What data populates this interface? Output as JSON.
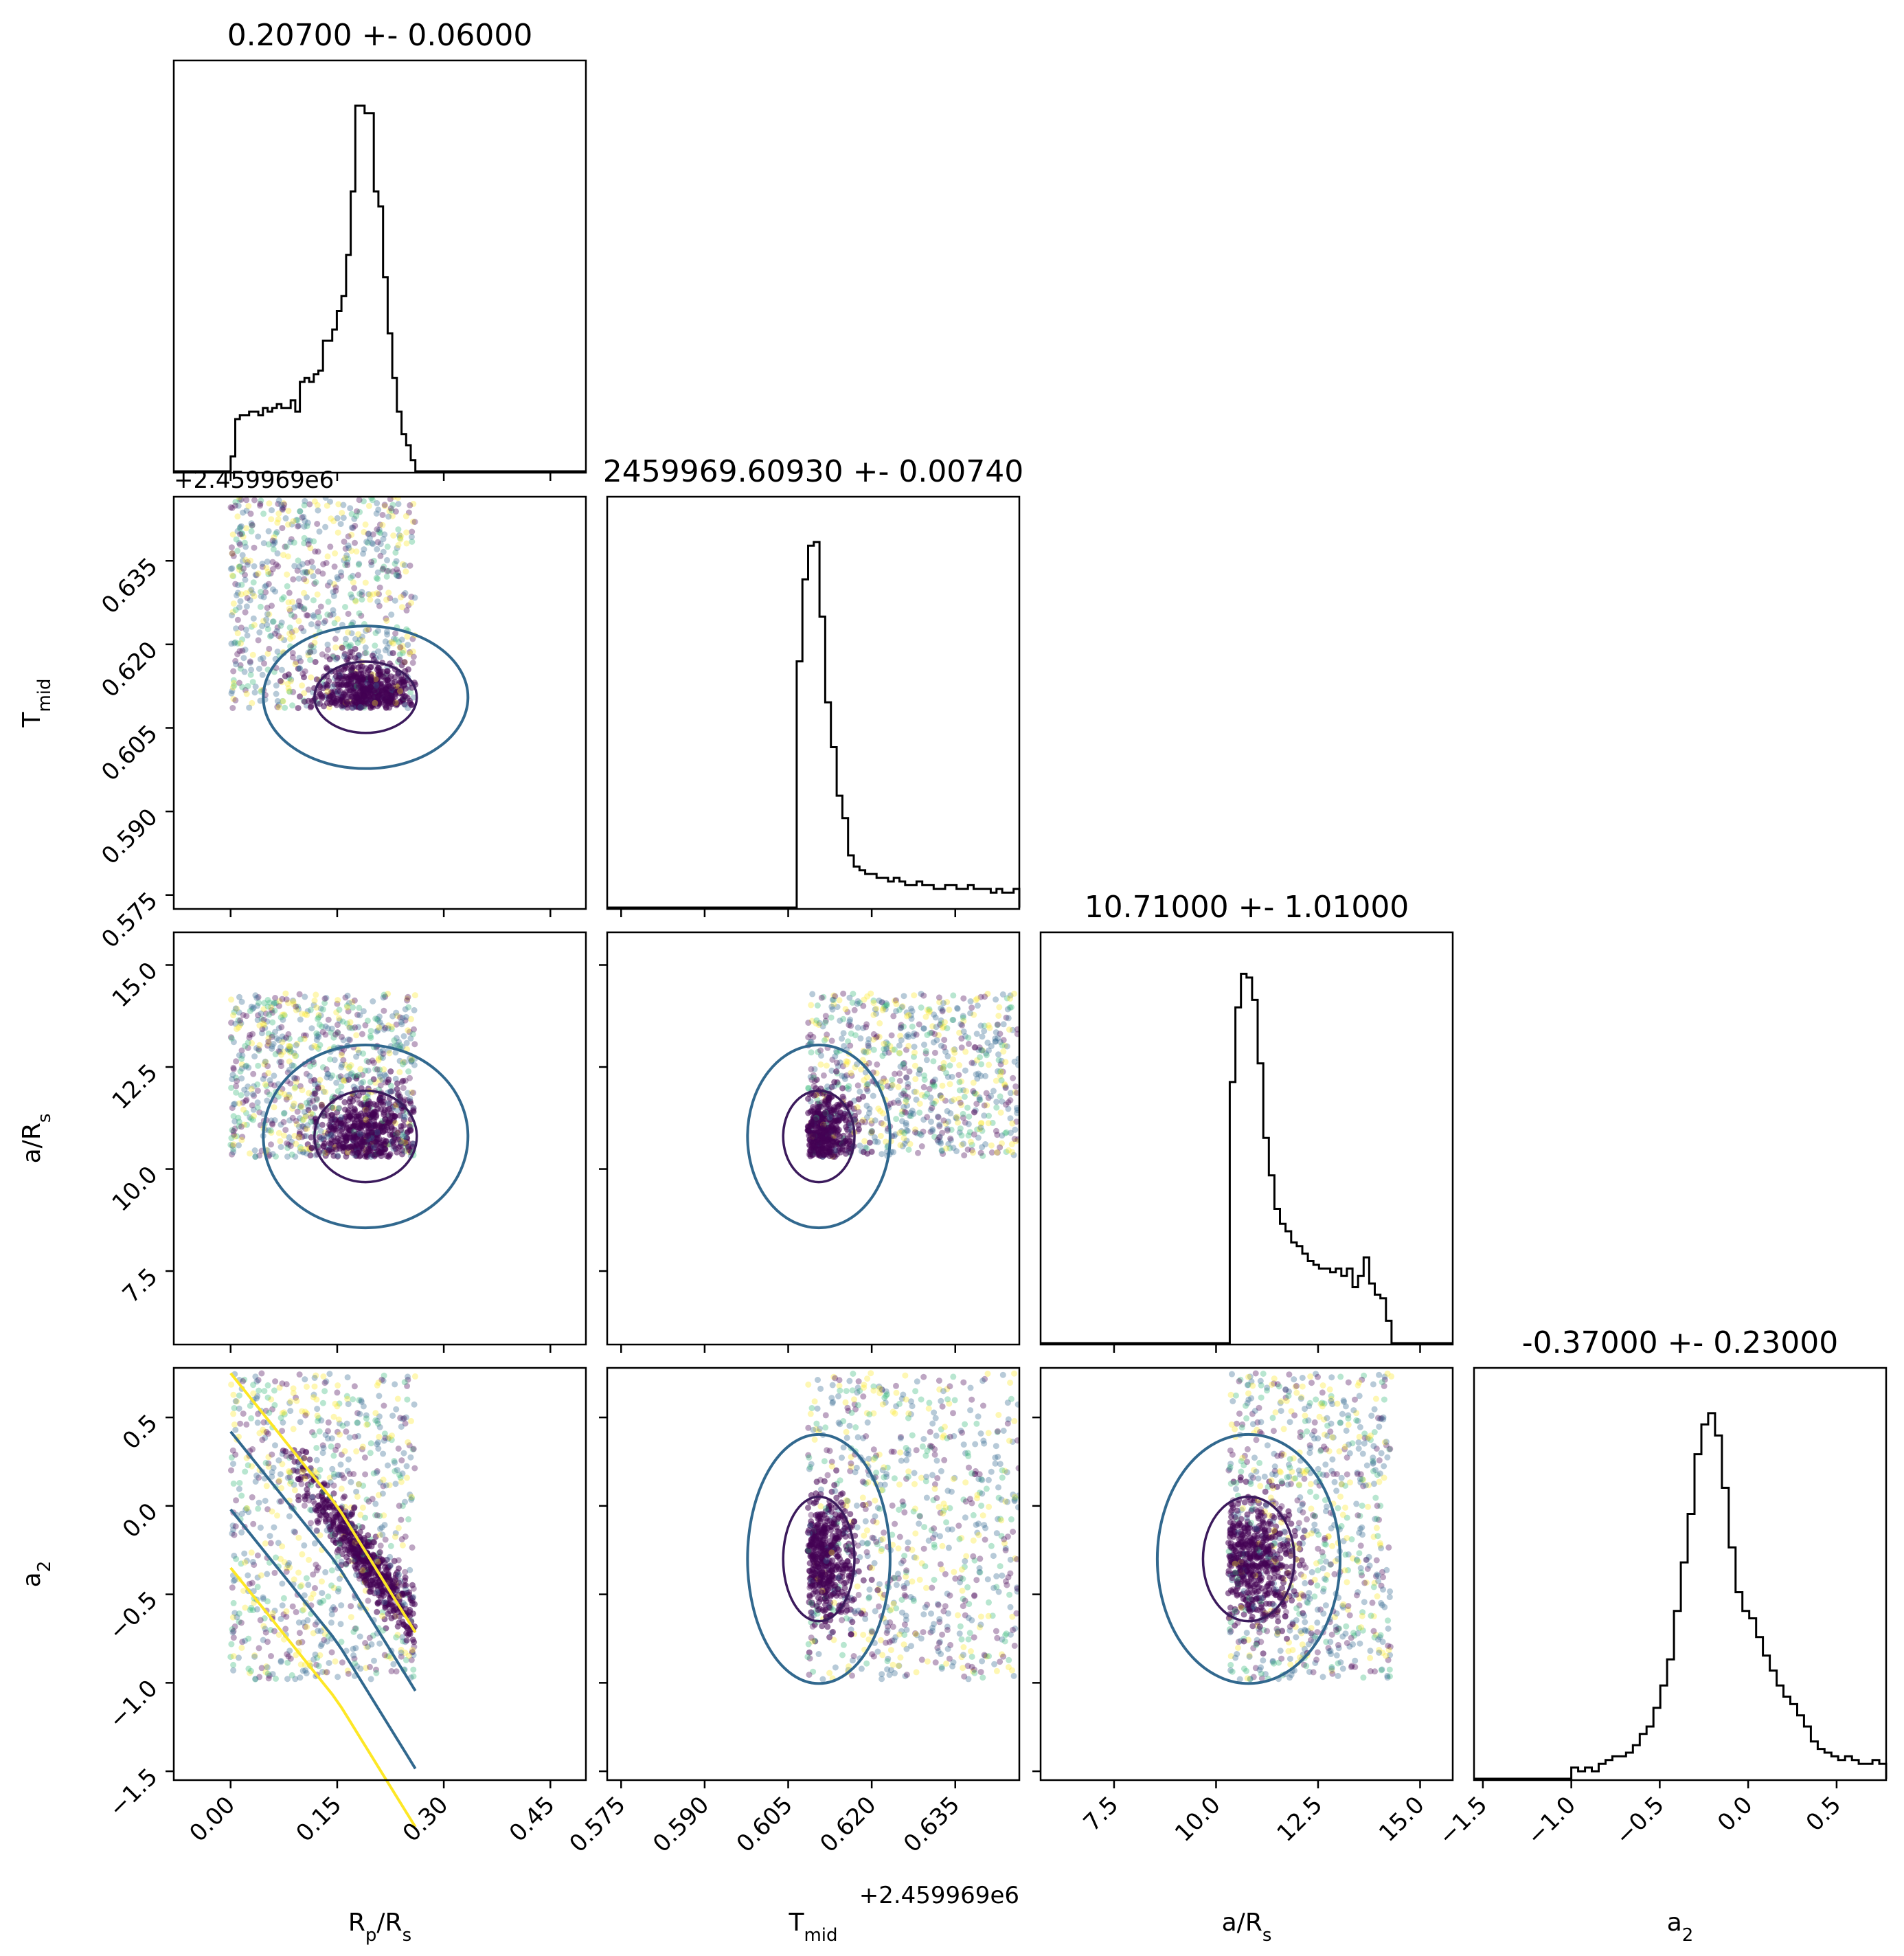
{
  "chart_data": {
    "type": "scatter",
    "subtype": "corner-plot",
    "parameters": [
      {
        "key": "rp",
        "label": "R_p/R_s",
        "label_main": "R",
        "label_sub": "p",
        "label_rest": "/R",
        "label_sub2": "s",
        "title": "0.20700 +- 0.06000",
        "range": [
          -0.08,
          0.5
        ],
        "ticks": [
          {
            "v": 0.0,
            "t": "0.00"
          },
          {
            "v": 0.15,
            "t": "0.15"
          },
          {
            "v": 0.3,
            "t": "0.30"
          },
          {
            "v": 0.45,
            "t": "0.45"
          }
        ]
      },
      {
        "key": "tmid",
        "label": "T_mid",
        "label_main": "T",
        "label_sub": "mid",
        "label_rest": "",
        "label_sub2": "",
        "title": "2459969.60930 +- 0.00740",
        "range": [
          0.5725,
          0.6465
        ],
        "offset_text": "+2.459969e6",
        "ticks": [
          {
            "v": 0.575,
            "t": "0.575"
          },
          {
            "v": 0.59,
            "t": "0.590"
          },
          {
            "v": 0.605,
            "t": "0.605"
          },
          {
            "v": 0.62,
            "t": "0.620"
          },
          {
            "v": 0.635,
            "t": "0.635"
          }
        ]
      },
      {
        "key": "ars",
        "label": "a/R_s",
        "label_main": "a/R",
        "label_sub": "s",
        "label_rest": "",
        "label_sub2": "",
        "title": "10.71000 +- 1.01000",
        "range": [
          5.7,
          15.8
        ],
        "ticks": [
          {
            "v": 7.5,
            "t": "7.5"
          },
          {
            "v": 10.0,
            "t": "10.0"
          },
          {
            "v": 12.5,
            "t": "12.5"
          },
          {
            "v": 15.0,
            "t": "15.0"
          }
        ]
      },
      {
        "key": "a2",
        "label": "a_2",
        "label_main": "a",
        "label_sub": "2",
        "label_rest": "",
        "label_sub2": "",
        "title": "-0.37000 +- 0.23000",
        "range": [
          -1.55,
          0.78
        ],
        "ticks": [
          {
            "v": -1.5,
            "t": "−1.5"
          },
          {
            "v": -1.0,
            "t": "−1.0"
          },
          {
            "v": -0.5,
            "t": "−0.5"
          },
          {
            "v": 0.0,
            "t": "0.0"
          },
          {
            "v": 0.5,
            "t": "0.5"
          }
        ]
      }
    ],
    "histograms": {
      "rp": {
        "edges_range": [
          0.0,
          0.26
        ],
        "ymax": 1.0,
        "counts": [
          0.04,
          0.14,
          0.15,
          0.15,
          0.16,
          0.16,
          0.15,
          0.17,
          0.16,
          0.17,
          0.18,
          0.17,
          0.17,
          0.19,
          0.16,
          0.24,
          0.25,
          0.24,
          0.26,
          0.27,
          0.35,
          0.35,
          0.38,
          0.43,
          0.47,
          0.58,
          0.75,
          0.98,
          0.98,
          0.96,
          0.96,
          0.75,
          0.71,
          0.52,
          0.37,
          0.25,
          0.16,
          0.1,
          0.07,
          0.03
        ]
      },
      "tmid": {
        "edges_range": [
          0.6055,
          0.6465
        ],
        "ymax": 1.0,
        "counts": [
          0.0,
          0.66,
          0.88,
          0.97,
          0.98,
          0.78,
          0.55,
          0.43,
          0.3,
          0.24,
          0.14,
          0.11,
          0.1,
          0.09,
          0.09,
          0.08,
          0.08,
          0.07,
          0.08,
          0.07,
          0.06,
          0.06,
          0.07,
          0.06,
          0.06,
          0.05,
          0.05,
          0.06,
          0.06,
          0.05,
          0.05,
          0.06,
          0.05,
          0.05,
          0.05,
          0.04,
          0.05,
          0.04,
          0.04,
          0.05
        ]
      },
      "ars": {
        "edges_range": [
          10.2,
          14.3
        ],
        "ymax": 1.0,
        "counts": [
          0.0,
          0.7,
          0.9,
          0.99,
          0.98,
          0.92,
          0.75,
          0.55,
          0.45,
          0.36,
          0.32,
          0.3,
          0.27,
          0.26,
          0.24,
          0.22,
          0.21,
          0.2,
          0.2,
          0.19,
          0.2,
          0.18,
          0.2,
          0.15,
          0.18,
          0.23,
          0.16,
          0.13,
          0.12,
          0.06
        ]
      },
      "a2": {
        "edges_range": [
          -1.0,
          0.78
        ],
        "ymax": 1.0,
        "counts": [
          0.03,
          0.02,
          0.03,
          0.02,
          0.04,
          0.05,
          0.06,
          0.06,
          0.07,
          0.09,
          0.12,
          0.14,
          0.19,
          0.25,
          0.32,
          0.45,
          0.58,
          0.71,
          0.87,
          0.95,
          0.98,
          0.92,
          0.78,
          0.62,
          0.5,
          0.45,
          0.43,
          0.38,
          0.33,
          0.29,
          0.25,
          0.22,
          0.2,
          0.17,
          0.14,
          0.1,
          0.08,
          0.07,
          0.06,
          0.05,
          0.06,
          0.05,
          0.04,
          0.04,
          0.05,
          0.04
        ]
      }
    },
    "scatter_support": {
      "rp": [
        0.0,
        0.26
      ],
      "tmid": [
        0.6085,
        0.6465
      ],
      "ars": [
        10.3,
        14.3
      ],
      "a2": [
        -0.98,
        0.75
      ]
    },
    "colormap": [
      "#440154",
      "#31688e",
      "#35b779",
      "#fde725"
    ],
    "contour_colors": {
      "inner": "#3b1a5c",
      "mid": "#31688e",
      "outer": "#fde725"
    },
    "grid": false,
    "legend": "none"
  }
}
